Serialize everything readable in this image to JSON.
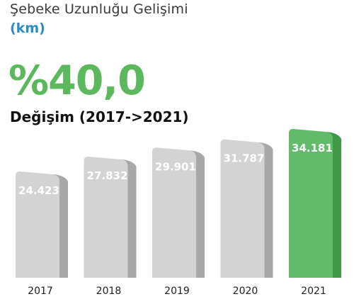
{
  "header": {
    "title": "Şebeke Uzunluğu Gelişimi",
    "unit": "(km)"
  },
  "highlight": {
    "value": "%40,0",
    "label": "Değişim (2017->2021)"
  },
  "colors": {
    "bar_front": "#d3d3d3",
    "bar_side": "#a8a8a8",
    "bar_highlight_front": "#62bb6b",
    "bar_highlight_side": "#3f9a48",
    "value_text": "#ffffff",
    "axis_text": "#222222"
  },
  "chart_data": {
    "type": "bar",
    "categories": [
      "2017",
      "2018",
      "2019",
      "2020",
      "2021"
    ],
    "values": [
      24423,
      27832,
      29901,
      31787,
      34181
    ],
    "value_labels": [
      "24.423",
      "27.832",
      "29.901",
      "31.787",
      "34.181"
    ],
    "highlight_index": 4,
    "title": "Şebeke Uzunluğu Gelişimi",
    "ylabel": "(km)",
    "grid": false,
    "legend": "none"
  }
}
